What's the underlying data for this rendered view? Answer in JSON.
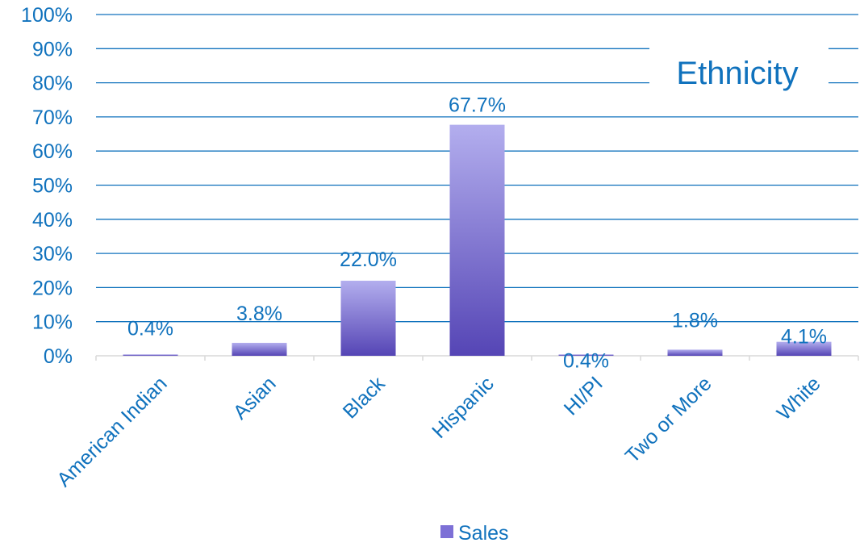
{
  "chart_data": {
    "type": "bar",
    "title": "Ethnicity",
    "categories": [
      "American Indian",
      "Asian",
      "Black",
      "Hispanic",
      "HI/PI",
      "Two or More",
      "White"
    ],
    "series": [
      {
        "name": "Sales",
        "values": [
          0.4,
          3.8,
          22.0,
          67.7,
          0.4,
          1.8,
          4.1
        ],
        "data_labels": [
          "0.4%",
          "3.8%",
          "22.0%",
          "67.7%",
          "0.4%",
          "1.8%",
          "4.1%"
        ]
      }
    ],
    "ylim": [
      0,
      100
    ],
    "yticks": [
      "0%",
      "10%",
      "20%",
      "30%",
      "40%",
      "50%",
      "60%",
      "70%",
      "80%",
      "90%",
      "100%"
    ],
    "grid": true,
    "legend_position": "bottom",
    "colors": {
      "text": "#1072BD",
      "gridline": "#1072BD",
      "bar_top": "#B3AEEE",
      "bar_bottom": "#5545B5",
      "legend_swatch": "#7D70D6"
    }
  }
}
